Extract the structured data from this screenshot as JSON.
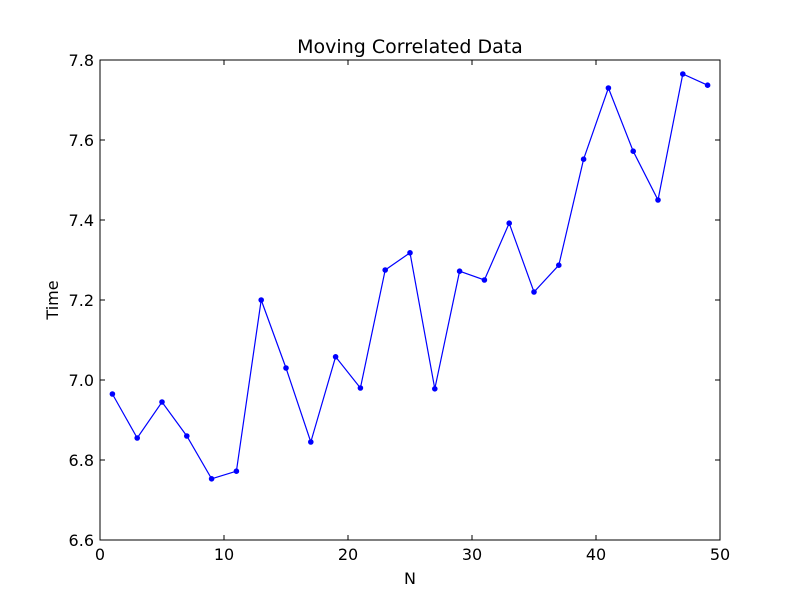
{
  "chart_data": {
    "type": "line",
    "title": "Moving Correlated Data",
    "xlabel": "N",
    "ylabel": "Time",
    "xlim": [
      0,
      50
    ],
    "ylim": [
      6.6,
      7.8
    ],
    "x_ticks": [
      0,
      10,
      20,
      30,
      40,
      50
    ],
    "x_tick_labels": [
      "0",
      "10",
      "20",
      "30",
      "40",
      "50"
    ],
    "y_ticks": [
      6.6,
      6.8,
      7.0,
      7.2,
      7.4,
      7.6,
      7.8
    ],
    "y_tick_labels": [
      "6.6",
      "6.8",
      "7.0",
      "7.2",
      "7.4",
      "7.6",
      "7.8"
    ],
    "grid": false,
    "series": [
      {
        "color": "#0000ff",
        "marker": "dot",
        "x": [
          1,
          3,
          5,
          7,
          9,
          11,
          13,
          15,
          17,
          19,
          21,
          23,
          25,
          27,
          29,
          31,
          33,
          35,
          37,
          39,
          41,
          43,
          45,
          47,
          49
        ],
        "y": [
          6.965,
          6.855,
          6.945,
          6.86,
          6.753,
          6.772,
          7.2,
          7.03,
          6.845,
          7.058,
          6.98,
          7.275,
          7.318,
          6.978,
          7.272,
          7.25,
          7.392,
          7.22,
          7.287,
          7.552,
          7.73,
          7.572,
          7.45,
          7.765,
          7.737
        ]
      }
    ]
  }
}
